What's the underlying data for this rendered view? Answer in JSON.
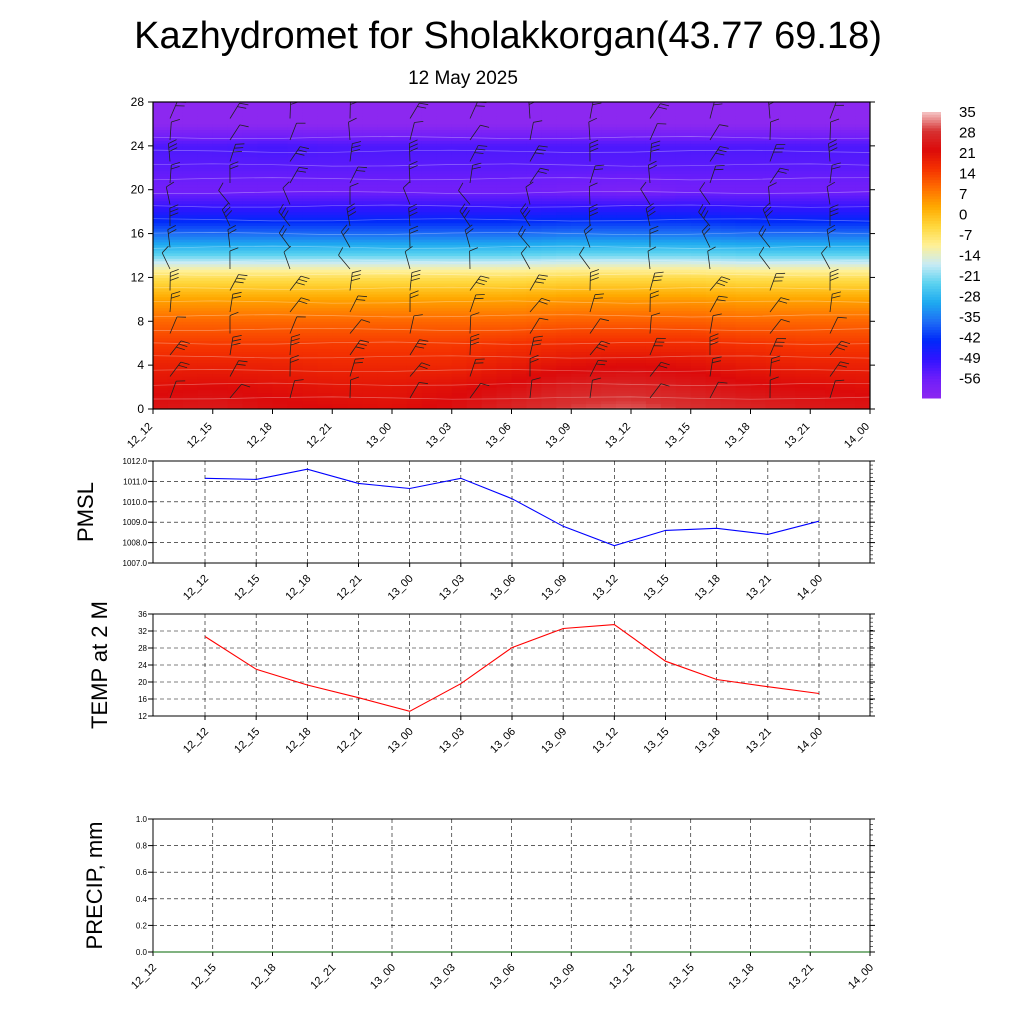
{
  "title": "Kazhydromet for Sholakkorgan(43.77 69.18)",
  "subtitle": "12 May 2025",
  "time_labels": [
    "12_12",
    "12_15",
    "12_18",
    "12_21",
    "13_00",
    "13_03",
    "13_06",
    "13_09",
    "13_12",
    "13_15",
    "13_18",
    "13_21",
    "14_00"
  ],
  "chart_data": [
    {
      "type": "heatmap",
      "title": "",
      "ylabel": "",
      "xlabel": "",
      "x": [
        "12_12",
        "12_15",
        "12_18",
        "12_21",
        "13_00",
        "13_03",
        "13_06",
        "13_09",
        "13_12",
        "13_15",
        "13_18",
        "13_21",
        "14_00"
      ],
      "y_ticks": [
        0,
        4,
        8,
        12,
        16,
        20,
        24,
        28
      ],
      "ylim": [
        0,
        28
      ],
      "colorbar_labels": [
        "35",
        "28",
        "21",
        "14",
        "7",
        "0",
        "-7",
        "-14",
        "-21",
        "-28",
        "-35",
        "-42",
        "-49",
        "-56"
      ],
      "colorbar_range": [
        -63,
        42
      ],
      "temperature_profile": [
        {
          "height": 0,
          "values": [
            30,
            31,
            29,
            28,
            27,
            29,
            33,
            36,
            37,
            35,
            33,
            31,
            30
          ]
        },
        {
          "height": 2,
          "values": [
            27,
            28,
            27,
            26,
            26,
            27,
            29,
            32,
            33,
            31,
            29,
            28,
            27
          ]
        },
        {
          "height": 4,
          "values": [
            24,
            24,
            24,
            23,
            23,
            23,
            25,
            27,
            28,
            27,
            25,
            24,
            24
          ]
        },
        {
          "height": 6,
          "values": [
            20,
            20,
            20,
            20,
            20,
            20,
            21,
            22,
            22,
            22,
            21,
            20,
            20
          ]
        },
        {
          "height": 8,
          "values": [
            15,
            15,
            15,
            15,
            15,
            15,
            15,
            16,
            16,
            16,
            15,
            15,
            15
          ]
        },
        {
          "height": 10,
          "values": [
            8,
            8,
            8,
            8,
            8,
            8,
            8,
            9,
            9,
            9,
            8,
            8,
            8
          ]
        },
        {
          "height": 12,
          "values": [
            -2,
            -2,
            -2,
            -2,
            -2,
            -2,
            -2,
            -1,
            -1,
            -1,
            -2,
            -2,
            -2
          ]
        },
        {
          "height": 13,
          "values": [
            -10,
            -10,
            -10,
            -10,
            -10,
            -10,
            -10,
            -9,
            -9,
            -9,
            -10,
            -10,
            -10
          ]
        },
        {
          "height": 14,
          "values": [
            -20,
            -20,
            -20,
            -20,
            -20,
            -20,
            -20,
            -19,
            -19,
            -19,
            -20,
            -20,
            -20
          ]
        },
        {
          "height": 16,
          "values": [
            -35,
            -35,
            -35,
            -35,
            -35,
            -35,
            -35,
            -34,
            -34,
            -34,
            -35,
            -35,
            -35
          ]
        },
        {
          "height": 18,
          "values": [
            -47,
            -47,
            -47,
            -47,
            -47,
            -47,
            -47,
            -46,
            -46,
            -46,
            -47,
            -47,
            -47
          ]
        },
        {
          "height": 20,
          "values": [
            -57,
            -57,
            -57,
            -57,
            -57,
            -57,
            -57,
            -58,
            -59,
            -57,
            -57,
            -57,
            -57
          ]
        },
        {
          "height": 22,
          "values": [
            -54,
            -54,
            -54,
            -54,
            -54,
            -54,
            -54,
            -54,
            -54,
            -54,
            -54,
            -54,
            -54
          ]
        },
        {
          "height": 24,
          "values": [
            -52,
            -52,
            -51,
            -52,
            -52,
            -52,
            -52,
            -52,
            -52,
            -52,
            -52,
            -52,
            -52
          ]
        },
        {
          "height": 26,
          "values": [
            -63,
            -63,
            -63,
            -63,
            -63,
            -63,
            -63,
            -63,
            -63,
            -63,
            -63,
            -63,
            -63
          ]
        },
        {
          "height": 28,
          "values": [
            -63,
            -63,
            -63,
            -63,
            -63,
            -63,
            -63,
            -63,
            -63,
            -63,
            -63,
            -63,
            -63
          ]
        }
      ]
    },
    {
      "type": "line",
      "title": "",
      "ylabel": "PMSL",
      "x": [
        "12_12",
        "12_15",
        "12_18",
        "12_21",
        "13_00",
        "13_03",
        "13_06",
        "13_09",
        "13_12",
        "13_15",
        "13_18",
        "13_21",
        "14_00"
      ],
      "y_tick_labels": [
        "1012.0",
        "1011.0",
        "1010.0",
        "1009.0",
        "1008.0",
        "1007.0"
      ],
      "ylim": [
        1007.0,
        1012.0
      ],
      "series": [
        {
          "values": [
            1011.15,
            1011.1,
            1011.6,
            1010.9,
            1010.65,
            1011.15,
            1010.15,
            1008.8,
            1007.85,
            1008.6,
            1008.7,
            1008.4,
            1009.05
          ],
          "color": "#0000ff"
        }
      ]
    },
    {
      "type": "line",
      "title": "",
      "ylabel": "TEMP at 2 M",
      "x": [
        "12_12",
        "12_15",
        "12_18",
        "12_21",
        "13_00",
        "13_03",
        "13_06",
        "13_09",
        "13_12",
        "13_15",
        "13_18",
        "13_21",
        "14_00"
      ],
      "y_tick_labels": [
        "36",
        "32",
        "28",
        "24",
        "20",
        "16",
        "12"
      ],
      "ylim": [
        12,
        36
      ],
      "series": [
        {
          "values": [
            30.7,
            23.0,
            19.3,
            16.3,
            13.1,
            19.6,
            28.1,
            32.6,
            33.5,
            24.9,
            20.6,
            18.9,
            17.3
          ],
          "color": "#ff0000"
        }
      ]
    },
    {
      "type": "line",
      "title": "",
      "ylabel": "PRECIP, mm",
      "x": [
        "12_12",
        "12_15",
        "12_18",
        "12_21",
        "13_00",
        "13_03",
        "13_06",
        "13_09",
        "13_12",
        "13_15",
        "13_18",
        "13_21",
        "14_00"
      ],
      "y_tick_labels": [
        "1.0",
        "0.8",
        "0.6",
        "0.4",
        "0.2",
        "0.0"
      ],
      "ylim": [
        0.0,
        1.0
      ],
      "series": [
        {
          "values": [
            0,
            0,
            0,
            0,
            0,
            0,
            0,
            0,
            0,
            0,
            0,
            0,
            0
          ],
          "color": "#006400"
        }
      ]
    }
  ],
  "colors": {
    "pmsl_line": "#0000ff",
    "temp_line": "#ff0000",
    "precip_line": "#006400",
    "grid": "#000000"
  }
}
